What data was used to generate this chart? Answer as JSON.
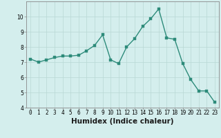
{
  "xlabel": "Humidex (Indice chaleur)",
  "x_values": [
    0,
    1,
    2,
    3,
    4,
    5,
    6,
    7,
    8,
    9,
    10,
    11,
    12,
    13,
    14,
    15,
    16,
    17,
    18,
    19,
    20,
    21,
    22,
    23
  ],
  "y_values": [
    7.2,
    7.0,
    7.15,
    7.3,
    7.4,
    7.4,
    7.45,
    7.75,
    8.1,
    8.8,
    7.15,
    6.9,
    8.0,
    8.55,
    9.35,
    9.85,
    10.5,
    8.6,
    8.5,
    6.9,
    5.85,
    5.1,
    5.1,
    4.35
  ],
  "line_color": "#2d8b7a",
  "marker_color": "#2d8b7a",
  "bg_color": "#d4eeed",
  "grid_color": "#b8d8d4",
  "axis_bg": "#d4eeed",
  "ylim": [
    4,
    11
  ],
  "yticks": [
    4,
    5,
    6,
    7,
    8,
    9,
    10
  ],
  "xticks": [
    0,
    1,
    2,
    3,
    4,
    5,
    6,
    7,
    8,
    9,
    10,
    11,
    12,
    13,
    14,
    15,
    16,
    17,
    18,
    19,
    20,
    21,
    22,
    23
  ],
  "tick_label_fontsize": 5.5,
  "xlabel_fontsize": 7.5,
  "linewidth": 1.0,
  "markersize": 2.2
}
